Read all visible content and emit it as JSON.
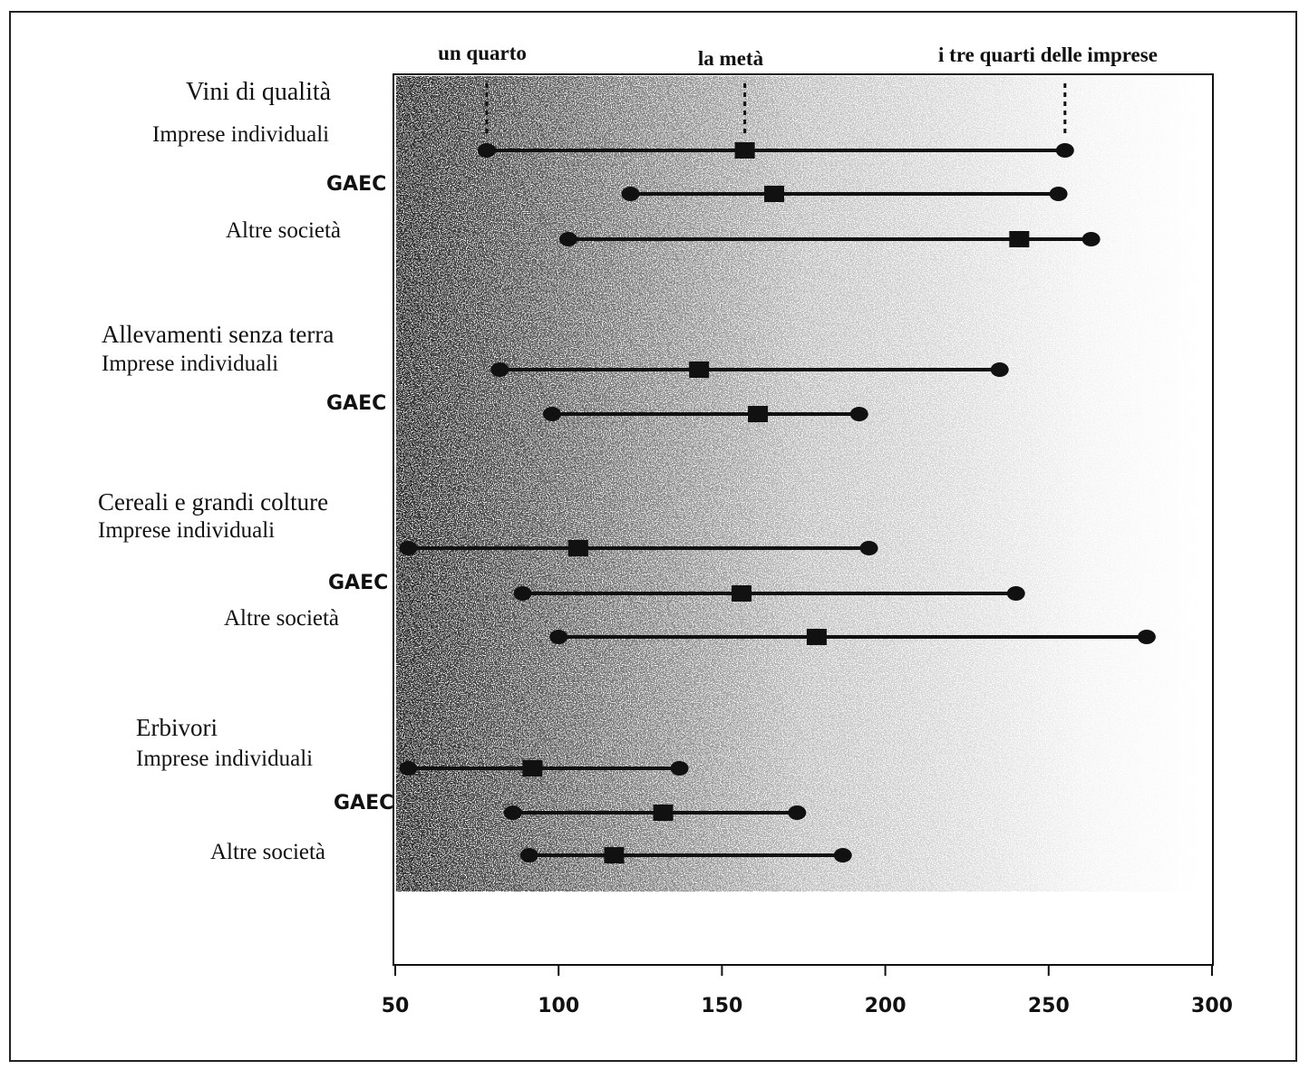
{
  "chart_data": {
    "type": "range",
    "title": "",
    "xlabel": "",
    "ylabel": "",
    "xlim": [
      50,
      300
    ],
    "x_ticks": [
      "50",
      "100",
      "150",
      "200",
      "250",
      "300"
    ],
    "reference_labels": {
      "q1": "un quarto",
      "median": "la metà",
      "q3": "i tre quarti delle imprese"
    },
    "reference_values": {
      "q1": 78,
      "median": 157,
      "q3": 255
    },
    "groups": [
      {
        "name": "Vini di qualità",
        "rows": [
          {
            "label": "Imprese individuali",
            "q1": 78,
            "median": 157,
            "q3": 255
          },
          {
            "label": "GAEC",
            "q1": 122,
            "median": 166,
            "q3": 253
          },
          {
            "label": "Altre società",
            "q1": 103,
            "median": 241,
            "q3": 263
          }
        ]
      },
      {
        "name": "Allevamenti senza terra",
        "rows": [
          {
            "label": "Imprese individuali",
            "q1": 82,
            "median": 143,
            "q3": 235
          },
          {
            "label": "GAEC",
            "q1": 98,
            "median": 161,
            "q3": 192
          }
        ]
      },
      {
        "name": "Cereali e grandi colture",
        "rows": [
          {
            "label": "Imprese individuali",
            "q1": 54,
            "median": 106,
            "q3": 195
          },
          {
            "label": "GAEC",
            "q1": 89,
            "median": 156,
            "q3": 240
          },
          {
            "label": "Altre società",
            "q1": 100,
            "median": 179,
            "q3": 280
          }
        ]
      },
      {
        "name": "Erbivori",
        "rows": [
          {
            "label": "Imprese individuali",
            "q1": 54,
            "median": 92,
            "q3": 137
          },
          {
            "label": "GAEC",
            "q1": 86,
            "median": 132,
            "q3": 173
          },
          {
            "label": "Altre società",
            "q1": 91,
            "median": 117,
            "q3": 187
          }
        ]
      }
    ]
  }
}
